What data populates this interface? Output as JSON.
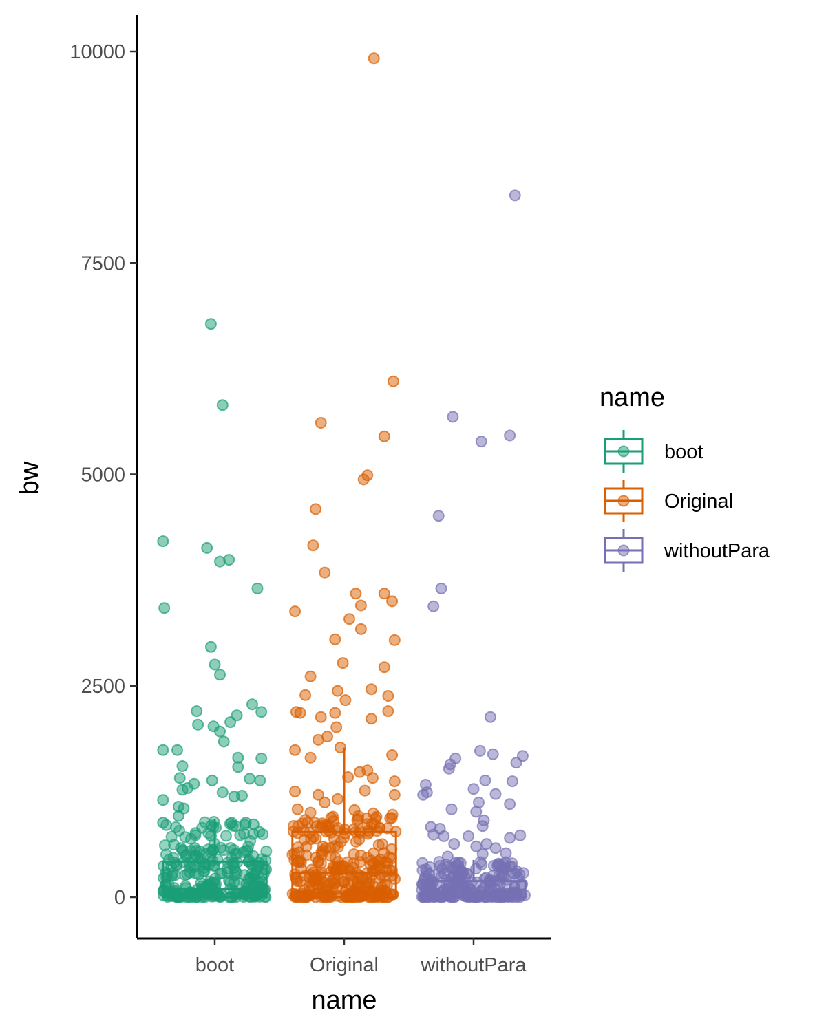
{
  "chart_data": {
    "type": "scatter",
    "subtype": "jitter-with-boxplot",
    "xlabel": "name",
    "ylabel": "bw",
    "categories": [
      "boot",
      "Original",
      "withoutPara"
    ],
    "yticks": [
      0,
      2500,
      5000,
      7500,
      10000
    ],
    "ytick_labels": [
      "0",
      "2500",
      "5000",
      "7500",
      "10000"
    ],
    "ylim": [
      -480,
      10400
    ],
    "grid": false,
    "legend": {
      "title": "name",
      "position": "right",
      "entries": [
        "boot",
        "Original",
        "withoutPara"
      ]
    },
    "colors": {
      "boot": "#1b9e77",
      "Original": "#d95f02",
      "withoutPara": "#7570b3"
    },
    "series": [
      {
        "name": "boot",
        "box": {
          "min": 0,
          "q1": 0,
          "median": 95,
          "q3": 420,
          "max": 920
        },
        "outliers": [
          {
            "dx": -0.03,
            "y": 6780
          },
          {
            "dx": 0.06,
            "y": 5820
          },
          {
            "dx": -0.4,
            "y": 4210
          },
          {
            "dx": -0.06,
            "y": 4130
          },
          {
            "dx": 0.04,
            "y": 3970
          },
          {
            "dx": 0.11,
            "y": 3990
          },
          {
            "dx": -0.39,
            "y": 3420
          },
          {
            "dx": 0.33,
            "y": 3650
          },
          {
            "dx": -0.03,
            "y": 2960
          },
          {
            "dx": 0.0,
            "y": 2750
          },
          {
            "dx": 0.04,
            "y": 2630
          },
          {
            "dx": -0.14,
            "y": 2200
          },
          {
            "dx": -0.13,
            "y": 2040
          },
          {
            "dx": -0.01,
            "y": 2020
          },
          {
            "dx": 0.04,
            "y": 1960
          },
          {
            "dx": 0.12,
            "y": 2070
          },
          {
            "dx": 0.17,
            "y": 2150
          },
          {
            "dx": 0.29,
            "y": 2280
          },
          {
            "dx": 0.36,
            "y": 2190
          },
          {
            "dx": 0.07,
            "y": 1840
          },
          {
            "dx": -0.4,
            "y": 1740
          },
          {
            "dx": -0.29,
            "y": 1740
          },
          {
            "dx": 0.18,
            "y": 1650
          },
          {
            "dx": 0.36,
            "y": 1640
          },
          {
            "dx": -0.25,
            "y": 1550
          },
          {
            "dx": 0.18,
            "y": 1540
          },
          {
            "dx": -0.27,
            "y": 1410
          },
          {
            "dx": -0.02,
            "y": 1380
          },
          {
            "dx": 0.27,
            "y": 1400
          },
          {
            "dx": 0.35,
            "y": 1380
          },
          {
            "dx": -0.16,
            "y": 1340
          },
          {
            "dx": -0.21,
            "y": 1290
          },
          {
            "dx": -0.25,
            "y": 1270
          },
          {
            "dx": 0.06,
            "y": 1240
          },
          {
            "dx": 0.15,
            "y": 1190
          },
          {
            "dx": 0.21,
            "y": 1200
          },
          {
            "dx": -0.4,
            "y": 1150
          },
          {
            "dx": -0.28,
            "y": 1070
          },
          {
            "dx": -0.24,
            "y": 1050
          },
          {
            "dx": -0.28,
            "y": 960
          },
          {
            "dx": -0.4,
            "y": 880
          },
          {
            "dx": 0.13,
            "y": 880
          },
          {
            "dx": 0.24,
            "y": 880
          },
          {
            "dx": 0.3,
            "y": 860
          }
        ],
        "dense_range": [
          0,
          900
        ],
        "dense_count": 260
      },
      {
        "name": "Original",
        "box": {
          "min": 0,
          "q1": 0,
          "median": 290,
          "q3": 770,
          "max": 1770
        },
        "outliers": [
          {
            "dx": 0.23,
            "y": 9920
          },
          {
            "dx": 0.38,
            "y": 6100
          },
          {
            "dx": -0.18,
            "y": 5610
          },
          {
            "dx": 0.31,
            "y": 5450
          },
          {
            "dx": 0.18,
            "y": 4990
          },
          {
            "dx": 0.15,
            "y": 4940
          },
          {
            "dx": -0.22,
            "y": 4590
          },
          {
            "dx": -0.24,
            "y": 4160
          },
          {
            "dx": -0.15,
            "y": 3840
          },
          {
            "dx": 0.09,
            "y": 3590
          },
          {
            "dx": 0.31,
            "y": 3590
          },
          {
            "dx": 0.37,
            "y": 3500
          },
          {
            "dx": 0.13,
            "y": 3450
          },
          {
            "dx": -0.38,
            "y": 3380
          },
          {
            "dx": 0.04,
            "y": 3290
          },
          {
            "dx": 0.13,
            "y": 3170
          },
          {
            "dx": -0.07,
            "y": 3050
          },
          {
            "dx": 0.39,
            "y": 3040
          },
          {
            "dx": -0.01,
            "y": 2770
          },
          {
            "dx": 0.31,
            "y": 2720
          },
          {
            "dx": -0.26,
            "y": 2610
          },
          {
            "dx": 0.21,
            "y": 2460
          },
          {
            "dx": -0.05,
            "y": 2440
          },
          {
            "dx": -0.3,
            "y": 2390
          },
          {
            "dx": 0.34,
            "y": 2380
          },
          {
            "dx": 0.01,
            "y": 2330
          },
          {
            "dx": -0.37,
            "y": 2190
          },
          {
            "dx": -0.34,
            "y": 2180
          },
          {
            "dx": -0.07,
            "y": 2180
          },
          {
            "dx": 0.34,
            "y": 2200
          },
          {
            "dx": -0.18,
            "y": 2130
          },
          {
            "dx": 0.21,
            "y": 2110
          },
          {
            "dx": -0.06,
            "y": 2010
          },
          {
            "dx": -0.13,
            "y": 1900
          },
          {
            "dx": -0.2,
            "y": 1860
          },
          {
            "dx": -0.03,
            "y": 1770
          },
          {
            "dx": -0.38,
            "y": 1740
          },
          {
            "dx": 0.37,
            "y": 1680
          },
          {
            "dx": -0.26,
            "y": 1650
          },
          {
            "dx": 0.18,
            "y": 1500
          },
          {
            "dx": 0.12,
            "y": 1480
          },
          {
            "dx": 0.22,
            "y": 1410
          },
          {
            "dx": 0.03,
            "y": 1420
          },
          {
            "dx": 0.39,
            "y": 1370
          },
          {
            "dx": 0.16,
            "y": 1260
          },
          {
            "dx": -0.38,
            "y": 1250
          },
          {
            "dx": -0.2,
            "y": 1210
          },
          {
            "dx": -0.05,
            "y": 1160
          },
          {
            "dx": -0.15,
            "y": 1120
          },
          {
            "dx": 0.39,
            "y": 1210
          },
          {
            "dx": -0.36,
            "y": 1040
          },
          {
            "dx": 0.08,
            "y": 1030
          },
          {
            "dx": -0.26,
            "y": 1000
          },
          {
            "dx": 0.25,
            "y": 950
          },
          {
            "dx": -0.1,
            "y": 940
          }
        ],
        "dense_range": [
          0,
          1000
        ],
        "dense_count": 290
      },
      {
        "name": "withoutPara",
        "box": {
          "min": 0,
          "q1": 0,
          "median": 0,
          "q3": 190,
          "max": 440
        },
        "outliers": [
          {
            "dx": 0.32,
            "y": 8300
          },
          {
            "dx": -0.16,
            "y": 5680
          },
          {
            "dx": 0.28,
            "y": 5460
          },
          {
            "dx": 0.06,
            "y": 5390
          },
          {
            "dx": -0.27,
            "y": 4510
          },
          {
            "dx": -0.25,
            "y": 3650
          },
          {
            "dx": -0.31,
            "y": 3440
          },
          {
            "dx": 0.13,
            "y": 2130
          },
          {
            "dx": 0.05,
            "y": 1730
          },
          {
            "dx": 0.15,
            "y": 1690
          },
          {
            "dx": 0.38,
            "y": 1670
          },
          {
            "dx": -0.14,
            "y": 1640
          },
          {
            "dx": 0.33,
            "y": 1590
          },
          {
            "dx": -0.18,
            "y": 1570
          },
          {
            "dx": -0.19,
            "y": 1520
          },
          {
            "dx": 0.09,
            "y": 1380
          },
          {
            "dx": 0.3,
            "y": 1370
          },
          {
            "dx": -0.37,
            "y": 1330
          },
          {
            "dx": 0.0,
            "y": 1280
          },
          {
            "dx": -0.36,
            "y": 1240
          },
          {
            "dx": 0.17,
            "y": 1220
          },
          {
            "dx": -0.39,
            "y": 1210
          },
          {
            "dx": 0.04,
            "y": 1120
          },
          {
            "dx": 0.28,
            "y": 1100
          },
          {
            "dx": -0.17,
            "y": 1040
          },
          {
            "dx": 0.02,
            "y": 1010
          },
          {
            "dx": 0.08,
            "y": 910
          },
          {
            "dx": 0.07,
            "y": 840
          },
          {
            "dx": -0.33,
            "y": 830
          },
          {
            "dx": -0.26,
            "y": 810
          },
          {
            "dx": -0.31,
            "y": 740
          },
          {
            "dx": -0.23,
            "y": 720
          },
          {
            "dx": -0.04,
            "y": 720
          },
          {
            "dx": 0.36,
            "y": 730
          },
          {
            "dx": 0.28,
            "y": 700
          },
          {
            "dx": -0.15,
            "y": 630
          },
          {
            "dx": 0.02,
            "y": 600
          },
          {
            "dx": 0.1,
            "y": 630
          },
          {
            "dx": 0.17,
            "y": 580
          },
          {
            "dx": 0.25,
            "y": 520
          },
          {
            "dx": 0.07,
            "y": 510
          },
          {
            "dx": -0.2,
            "y": 480
          }
        ],
        "dense_range": [
          0,
          420
        ],
        "dense_count": 230
      }
    ]
  }
}
